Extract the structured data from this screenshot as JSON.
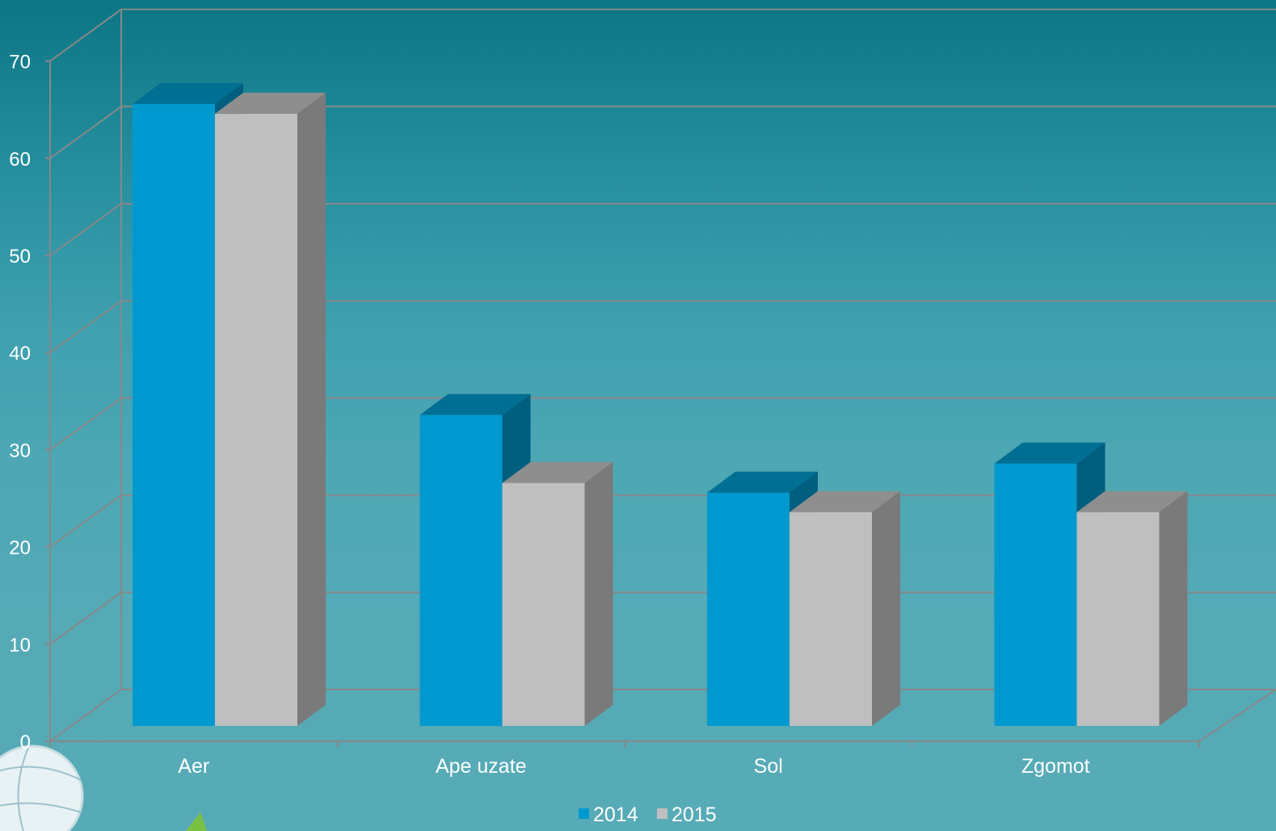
{
  "chart_data": {
    "type": "bar",
    "style": "3d-clustered-column",
    "categories": [
      "Aer",
      "Ape uzate",
      "Sol",
      "Zgomot"
    ],
    "series": [
      {
        "name": "2014",
        "color": "#0099cf",
        "top_color": "#006f94",
        "side_color": "#005f7e",
        "values": [
          64,
          32,
          24,
          27
        ]
      },
      {
        "name": "2015",
        "color": "#bfbfbf",
        "top_color": "#8e8e8e",
        "side_color": "#7a7a7a",
        "values": [
          63,
          25,
          22,
          22
        ]
      }
    ],
    "ylim": [
      0,
      70
    ],
    "yticks": [
      0,
      10,
      20,
      30,
      40,
      50,
      60,
      70
    ],
    "grid": true,
    "legend_position": "bottom-center",
    "title": "",
    "xlabel": "",
    "ylabel": ""
  },
  "colors": {
    "gridline": "#888888",
    "axis": "#888888",
    "text": "#ffffff"
  }
}
